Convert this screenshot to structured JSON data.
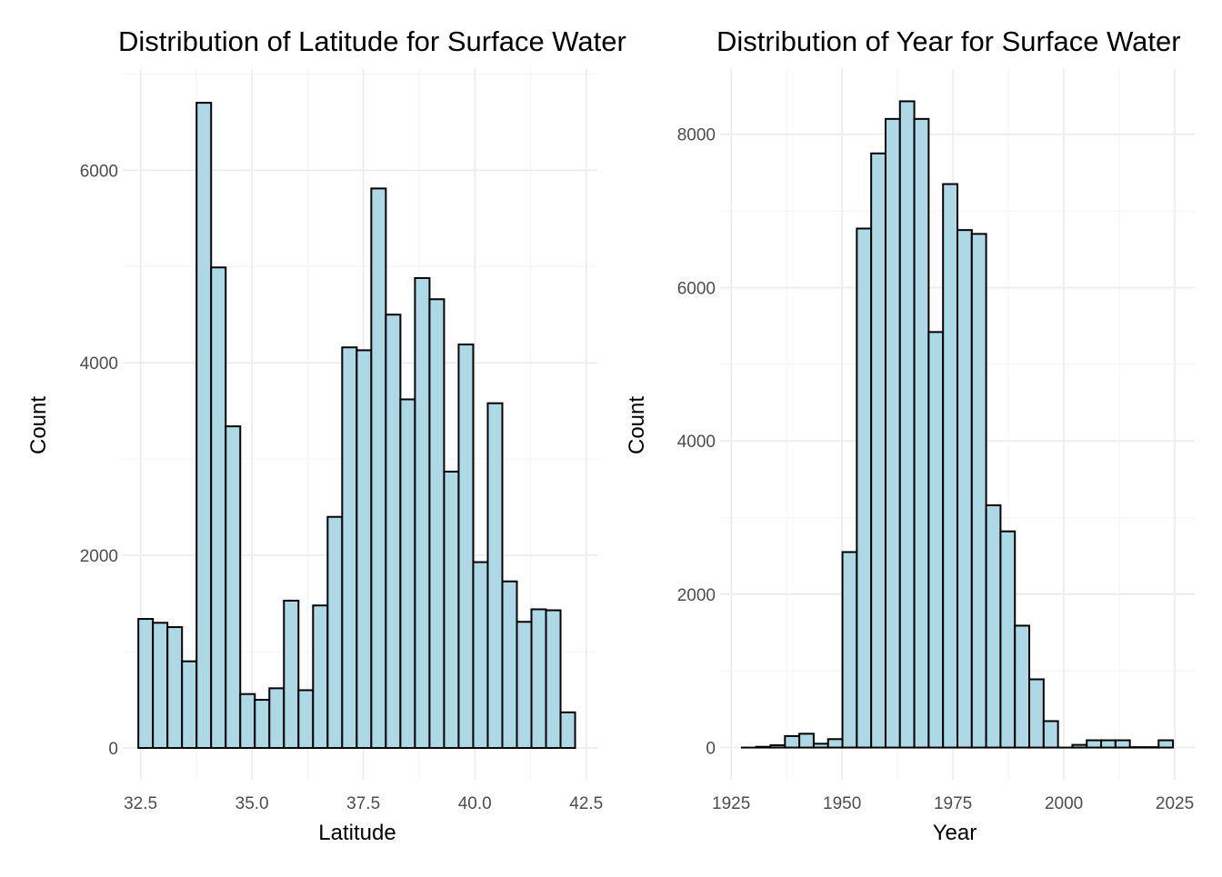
{
  "chart_data": [
    {
      "type": "bar",
      "title": "Distribution of Latitude for Surface Water",
      "xlabel": "Latitude",
      "ylabel": "Count",
      "bin_start": 32.45,
      "bin_width": 0.3267,
      "values": [
        1340,
        1300,
        1255,
        900,
        6700,
        4990,
        3340,
        560,
        500,
        620,
        1530,
        600,
        1480,
        2400,
        4160,
        4130,
        5810,
        4500,
        3620,
        4880,
        4660,
        2870,
        4190,
        1930,
        3580,
        1730,
        1310,
        1440,
        1430,
        370
      ],
      "xlim": [
        32.1,
        42.75
      ],
      "ylim": [
        -330,
        7050
      ],
      "x_ticks": [
        32.5,
        35.0,
        37.5,
        40.0,
        42.5
      ],
      "x_tick_labels": [
        "32.5",
        "35.0",
        "37.5",
        "40.0",
        "42.5"
      ],
      "y_ticks": [
        0,
        2000,
        4000,
        6000
      ],
      "y_tick_labels": [
        "0",
        "2000",
        "4000",
        "6000"
      ],
      "grid": true,
      "fill_color": "#add8e6",
      "edge_color": "#000000"
    },
    {
      "type": "bar",
      "title": "Distribution of Year for Surface Water",
      "xlabel": "Year",
      "ylabel": "Count",
      "bin_start": 1927.4,
      "bin_width": 3.24,
      "values": [
        0,
        10,
        30,
        150,
        180,
        50,
        110,
        2550,
        6770,
        7750,
        8200,
        8430,
        8200,
        5420,
        7350,
        6750,
        6700,
        3160,
        2820,
        1590,
        890,
        345,
        0,
        35,
        95,
        95,
        95,
        5,
        5,
        95
      ],
      "xlim": [
        1922.5,
        2029.5
      ],
      "ylim": [
        -420,
        8850
      ],
      "x_ticks": [
        1925,
        1950,
        1975,
        2000,
        2025
      ],
      "x_tick_labels": [
        "1925",
        "1950",
        "1975",
        "2000",
        "2025"
      ],
      "y_ticks": [
        0,
        2000,
        4000,
        6000,
        8000
      ],
      "y_tick_labels": [
        "0",
        "2000",
        "4000",
        "6000",
        "8000"
      ],
      "grid": true,
      "fill_color": "#add8e6",
      "edge_color": "#000000"
    }
  ]
}
